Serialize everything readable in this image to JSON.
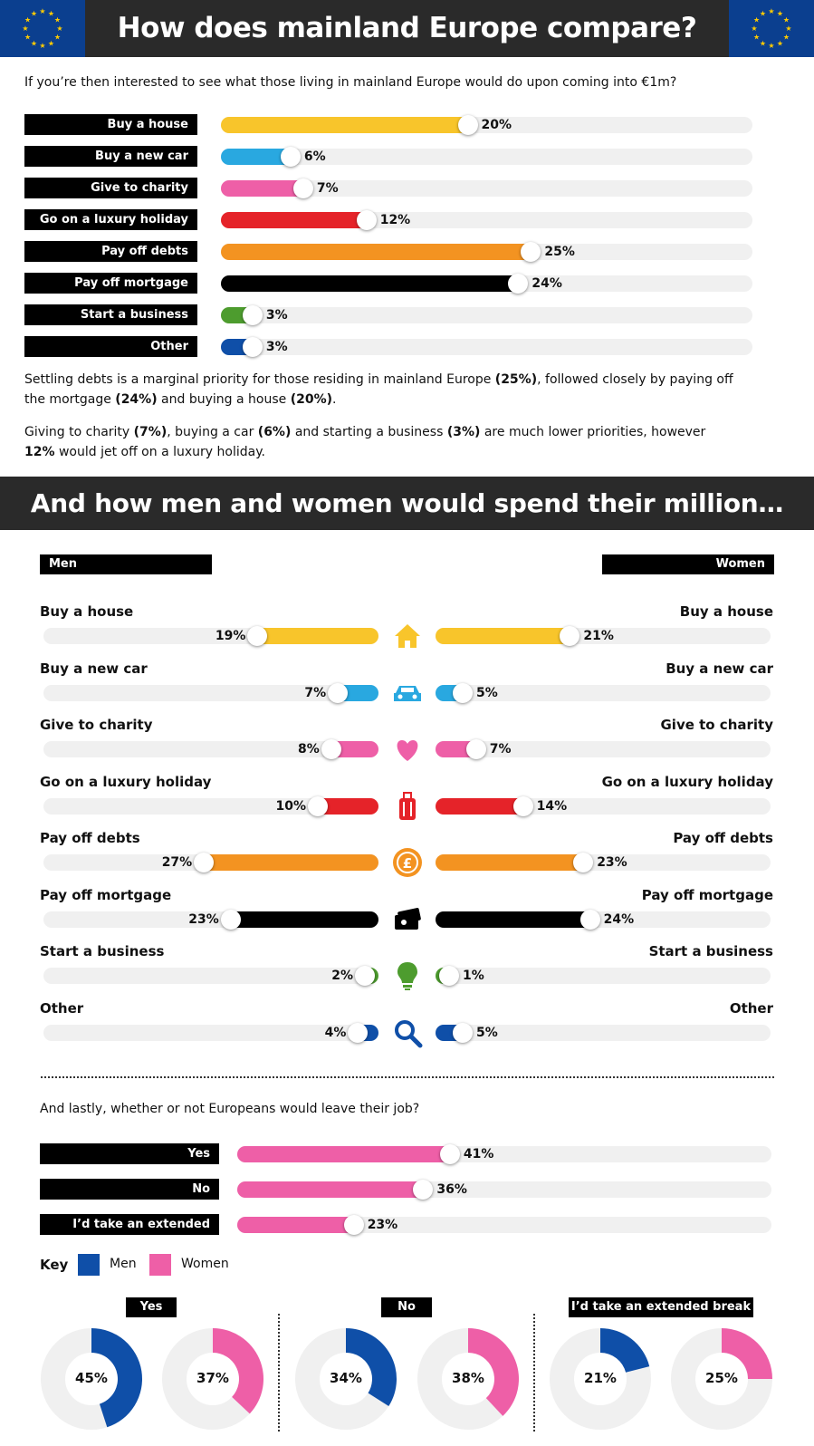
{
  "header": {
    "title": "How does mainland Europe compare?",
    "intro": "If you’re then interested to see what those living in mainland Europe would do upon coming into €1m?"
  },
  "colors": {
    "yellow": "#f8c52b",
    "blue_light": "#29a8e0",
    "pink": "#ee5fa7",
    "red": "#e52329",
    "orange": "#f39321",
    "black": "#000000",
    "green": "#4d9c2e",
    "navy": "#0f4fa8"
  },
  "chart_data": [
    {
      "type": "bar",
      "categories": [
        "Buy a house",
        "Buy a new car",
        "Give to charity",
        "Go on a luxury holiday",
        "Pay off debts",
        "Pay off mortgage",
        "Start a business",
        "Other"
      ],
      "values": [
        20,
        6,
        7,
        12,
        25,
        24,
        3,
        3
      ],
      "value_labels": [
        "20%",
        "6%",
        "7%",
        "12%",
        "25%",
        "24%",
        "3%",
        "3%"
      ],
      "bar_colors": [
        "#f8c52b",
        "#29a8e0",
        "#ee5fa7",
        "#e52329",
        "#f39321",
        "#000000",
        "#4d9c2e",
        "#0f4fa8"
      ],
      "ylim": [
        0,
        100
      ]
    },
    {
      "type": "bar",
      "title": "And how men and women would spend their million…",
      "categories": [
        "Buy a house",
        "Buy a new car",
        "Give to charity",
        "Go on a luxury holiday",
        "Pay off debts",
        "Pay off mortgage",
        "Start a business",
        "Other"
      ],
      "series": [
        {
          "name": "Men",
          "values": [
            19,
            7,
            8,
            10,
            27,
            23,
            2,
            4
          ],
          "labels": [
            "19%",
            "7%",
            "8%",
            "10%",
            "27%",
            "23%",
            "2%",
            "4%"
          ]
        },
        {
          "name": "Women",
          "values": [
            21,
            5,
            7,
            14,
            23,
            24,
            1,
            5
          ],
          "labels": [
            "21%",
            "5%",
            "7%",
            "14%",
            "23%",
            "24%",
            "1%",
            "5%"
          ]
        }
      ],
      "icons": [
        "house-icon",
        "car-icon",
        "heart-icon",
        "suitcase-icon",
        "pound-coin-icon",
        "wallet-card-icon",
        "lightbulb-icon",
        "magnifier-icon"
      ],
      "ylim": [
        0,
        100
      ]
    },
    {
      "type": "bar",
      "categories": [
        "Yes",
        "No",
        "I’d take an extended break"
      ],
      "values": [
        41,
        36,
        23
      ],
      "value_labels": [
        "41%",
        "36%",
        "23%"
      ],
      "bar_color": "#ee5fa7",
      "ylim": [
        0,
        100
      ]
    },
    {
      "type": "pie",
      "groups": [
        {
          "label": "Yes",
          "men": 45,
          "women": 37,
          "men_label": "45%",
          "women_label": "37%"
        },
        {
          "label": "No",
          "men": 34,
          "women": 38,
          "men_label": "34%",
          "women_label": "38%"
        },
        {
          "label": "I’d take an extended break",
          "men": 21,
          "women": 25,
          "men_label": "21%",
          "women_label": "25%"
        }
      ],
      "legend": [
        {
          "name": "Men",
          "color": "#0f4fa8"
        },
        {
          "name": "Women",
          "color": "#ee5fa7"
        }
      ]
    }
  ],
  "summary": {
    "p1": [
      {
        "t": "Settling debts is a marginal priority for those residing in mainland Europe "
      },
      {
        "t": "(25%)",
        "b": true
      },
      {
        "t": ", followed closely by paying off the mortgage "
      },
      {
        "t": "(24%)",
        "b": true
      },
      {
        "t": " and buying a house "
      },
      {
        "t": "(20%)",
        "b": true
      },
      {
        "t": "."
      }
    ],
    "p2": [
      {
        "t": "Giving to charity "
      },
      {
        "t": "(7%)",
        "b": true
      },
      {
        "t": ", buying a car "
      },
      {
        "t": "(6%)",
        "b": true
      },
      {
        "t": " and starting a business "
      },
      {
        "t": "(3%)",
        "b": true
      },
      {
        "t": " are much lower priorities, however "
      },
      {
        "t": "12%",
        "b": true
      },
      {
        "t": " would jet off on a luxury holiday."
      }
    ]
  },
  "gender": {
    "title": "And how men and women would spend their million…",
    "men_label": "Men",
    "women_label": "Women"
  },
  "job": {
    "question": "And lastly, whether or not Europeans would leave their job?",
    "key_label": "Key",
    "men_key": "Men",
    "women_key": "Women"
  }
}
